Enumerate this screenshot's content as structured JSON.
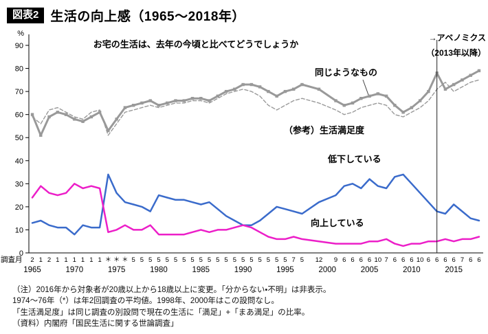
{
  "header": {
    "tag": "図表2",
    "title": "生活の向上感（1965〜2018年）"
  },
  "chart_data": {
    "type": "line",
    "question": "お宅の生活は、去年の今頃と比べてどうでしょうか",
    "unit": "%",
    "ylim": [
      0,
      90
    ],
    "ytick_step": 10,
    "x_caption": "調査月",
    "year_start": 1965,
    "year_end": 2018,
    "year_ticks": [
      1965,
      1970,
      1975,
      1980,
      1985,
      1990,
      1995,
      2000,
      2005,
      2010,
      2015
    ],
    "survey_months": [
      "2",
      "1",
      "2",
      "1",
      "1",
      "1",
      "1",
      "1",
      "1",
      "＊",
      "＊",
      "＊",
      "5",
      "5",
      "5",
      "5",
      "5",
      "5",
      "5",
      "5",
      "5",
      "5",
      "5",
      "5",
      "5",
      "5",
      "5",
      "5",
      "5",
      "5",
      "5",
      "7",
      "5",
      "",
      "12",
      "",
      "9",
      "6",
      "6",
      "6",
      "6",
      "10",
      "7",
      "6",
      "6",
      "6",
      "10",
      "6",
      "6",
      "6",
      "6",
      "7",
      "6",
      "6"
    ],
    "series": [
      {
        "id": "same",
        "label": "同じようなもの",
        "color": "#999999",
        "line": "solid",
        "width": 3,
        "markers": true,
        "values": [
          60,
          51,
          59,
          61,
          60,
          58,
          57,
          59,
          61,
          53,
          58,
          63,
          64,
          65,
          66,
          64,
          65,
          66,
          66,
          67,
          67,
          66,
          68,
          70,
          71,
          73,
          73,
          72,
          70,
          68,
          70,
          71,
          73,
          null,
          71,
          null,
          66,
          64,
          65,
          67,
          68,
          69,
          68,
          64,
          61,
          63,
          66,
          70,
          78,
          71,
          73,
          75,
          77,
          79
        ]
      },
      {
        "id": "satisfaction",
        "label": "（参考）生活満足度",
        "color": "#999999",
        "line": "dashed",
        "width": 1.4,
        "markers": false,
        "values": [
          59,
          56,
          62,
          63,
          61,
          59,
          58,
          61,
          62,
          51,
          56,
          61,
          62,
          63,
          64,
          63,
          64,
          65,
          65,
          66,
          66,
          65,
          67,
          69,
          70,
          71,
          70,
          68,
          64,
          62,
          64,
          66,
          67,
          null,
          65,
          null,
          62,
          60,
          61,
          63,
          64,
          65,
          64,
          60,
          59,
          61,
          63,
          66,
          71,
          74,
          70,
          72,
          74,
          75
        ]
      },
      {
        "id": "decline",
        "label": "低下している",
        "color": "#3a6bcb",
        "line": "solid",
        "width": 2.5,
        "markers": false,
        "values": [
          13,
          14,
          12,
          11,
          11,
          8,
          12,
          11,
          11,
          34,
          26,
          22,
          21,
          20,
          18,
          25,
          24,
          23,
          23,
          22,
          21,
          22,
          19,
          16,
          14,
          12,
          12,
          14,
          17,
          20,
          19,
          18,
          17,
          null,
          22,
          null,
          25,
          29,
          30,
          28,
          32,
          29,
          28,
          33,
          34,
          30,
          26,
          22,
          18,
          17,
          21,
          18,
          15,
          14
        ]
      },
      {
        "id": "improve",
        "label": "向上している",
        "color": "#ec1ec8",
        "line": "solid",
        "width": 2.5,
        "markers": false,
        "values": [
          24,
          29,
          26,
          25,
          26,
          30,
          28,
          29,
          28,
          9,
          10,
          12,
          10,
          10,
          12,
          8,
          8,
          8,
          8,
          9,
          10,
          9,
          10,
          10,
          11,
          12,
          11,
          9,
          7,
          6,
          6,
          7,
          6,
          null,
          5,
          null,
          4,
          4,
          4,
          4,
          5,
          5,
          6,
          4,
          3,
          4,
          4,
          5,
          5,
          6,
          5,
          6,
          6,
          7
        ]
      }
    ],
    "annotations": {
      "abenomics": {
        "label": "→アベノミクス",
        "sublabel": "（2013年以降）",
        "line_year": 2013
      }
    }
  },
  "notes": [
    "（注）2016年から対象者が20歳以上から18歳以上に変更。「分からない・不明」は非表示。",
    "1974〜76年（*）は年2回調査の平均値。1998年、2000年はこの設問なし。",
    "「生活満足度」は同じ調査の別設問で現在の生活に「満足」+「まあ満足」の比率。",
    "（資料）内閣府「国民生活に関する世論調査」"
  ]
}
